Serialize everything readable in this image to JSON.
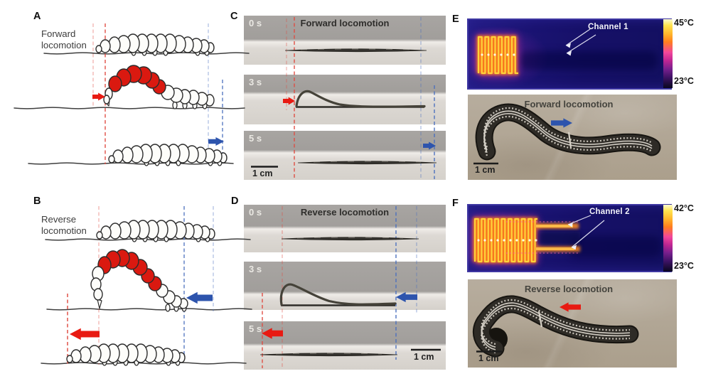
{
  "figure": {
    "panels": {
      "a": {
        "letter": "A",
        "caption_line1": "Forward",
        "caption_line2": "locomotion"
      },
      "b": {
        "letter": "B",
        "caption_line1": "Reverse",
        "caption_line2": "locomotion"
      },
      "c": {
        "letter": "C",
        "title": "Forward locomotion",
        "times": [
          "0 s",
          "3 s",
          "5 s"
        ],
        "scale_label": "1 cm"
      },
      "d": {
        "letter": "D",
        "title": "Reverse locomotion",
        "times": [
          "0 s",
          "3 s",
          "5 s"
        ],
        "scale_label": "1 cm"
      },
      "e": {
        "letter": "E",
        "channel_label": "Channel 1",
        "temp_max": "45°C",
        "temp_min": "23°C",
        "photo_title": "Forward locomotion",
        "scale_label": "1 cm"
      },
      "f": {
        "letter": "F",
        "channel_label": "Channel 2",
        "temp_max": "42°C",
        "temp_min": "23°C",
        "photo_title": "Reverse locomotion",
        "scale_label": "1 cm"
      }
    },
    "colors": {
      "highlight_red": "#da1910",
      "arrow_red": "#e81a12",
      "arrow_blue": "#2d54ad",
      "thermal_hot": "#ffd23a",
      "thermal_cold": "#0b0720"
    }
  }
}
